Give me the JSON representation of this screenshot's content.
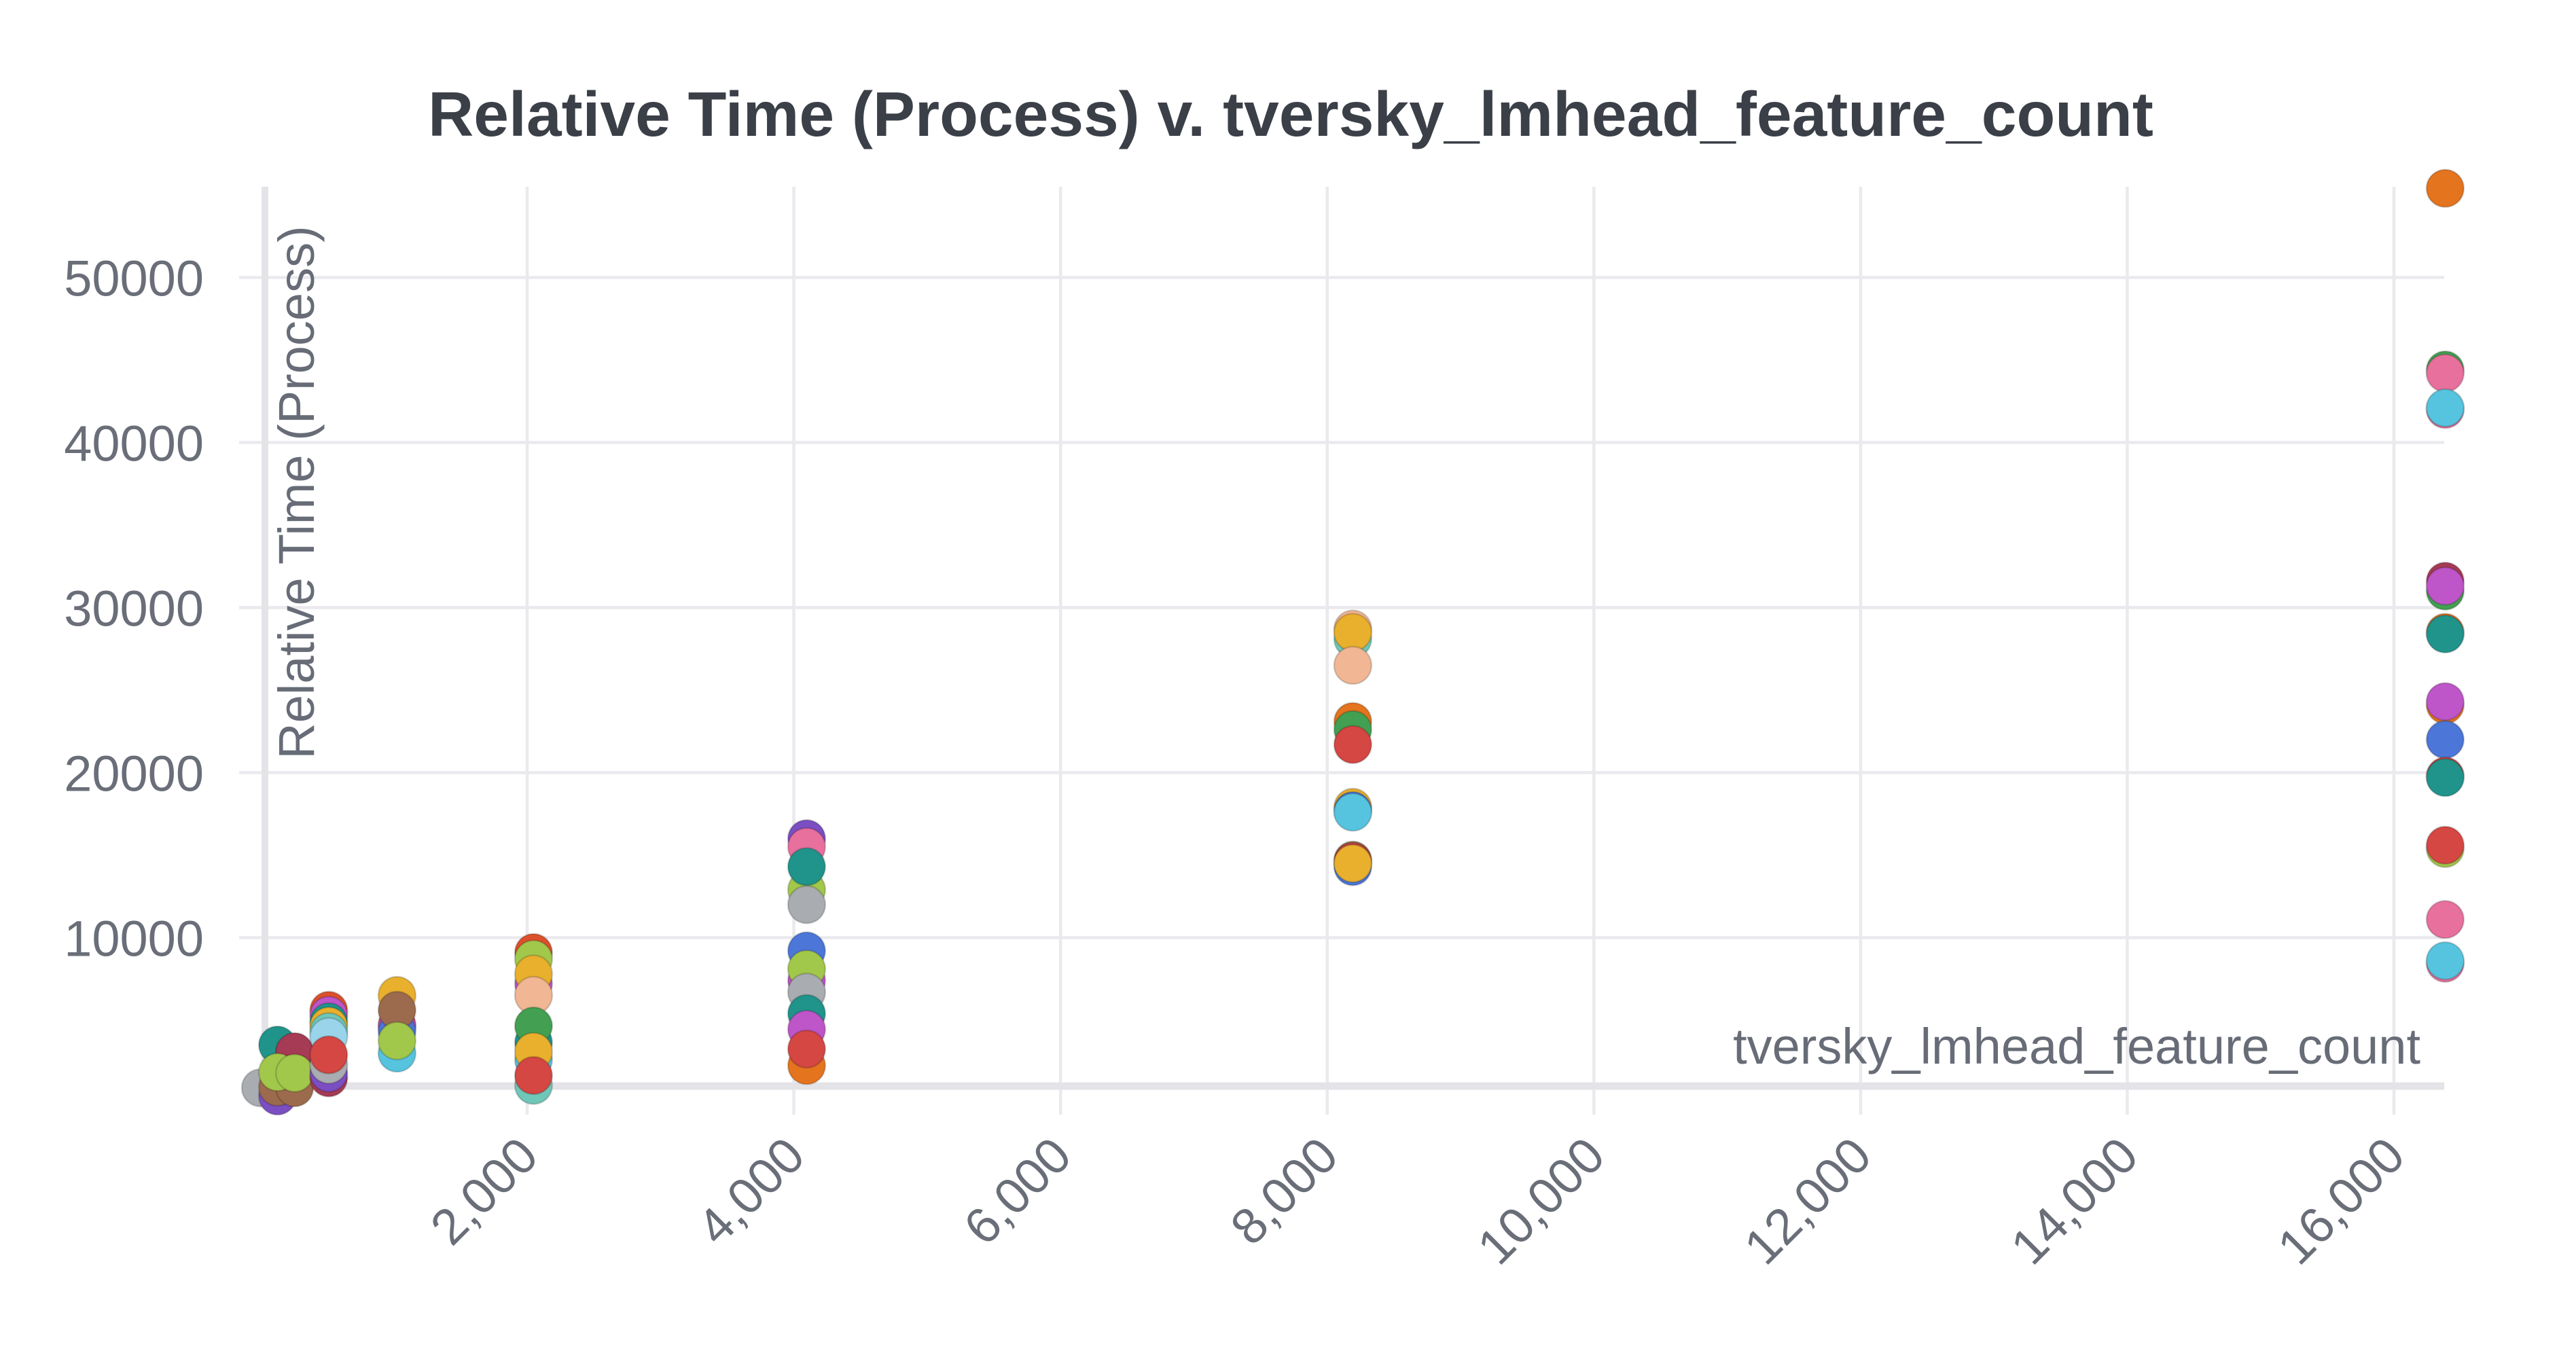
{
  "chart_data": {
    "type": "scatter",
    "title": "Relative Time (Process) v. tversky_lmhead_feature_count",
    "xlabel": "tversky_lmhead_feature_count",
    "ylabel": "Relative Time (Process)",
    "xlim": [
      0,
      16384
    ],
    "ylim": [
      400,
      55700
    ],
    "grid": true,
    "legend_position": "none",
    "x_ticks": [
      {
        "value": 2000,
        "label": "2,000"
      },
      {
        "value": 4000,
        "label": "4,000"
      },
      {
        "value": 6000,
        "label": "6,000"
      },
      {
        "value": 8000,
        "label": "8,000"
      },
      {
        "value": 10000,
        "label": "10,000"
      },
      {
        "value": 12000,
        "label": "12,000"
      },
      {
        "value": 14000,
        "label": "14,000"
      },
      {
        "value": 16000,
        "label": "16,000"
      }
    ],
    "y_ticks": [
      {
        "value": 10000,
        "label": "10000"
      },
      {
        "value": 20000,
        "label": "20000"
      },
      {
        "value": 30000,
        "label": "30000"
      },
      {
        "value": 40000,
        "label": "40000"
      },
      {
        "value": 50000,
        "label": "50000"
      }
    ],
    "palette": {
      "gray": "#a9acb0",
      "yellowgreen": "#a2c84b",
      "brown": "#9c6b4e",
      "purple": "#7b4ec2",
      "teal": "#20948b",
      "crimson": "#a63b55",
      "peach": "#f1b794",
      "orangered": "#dc512c",
      "magenta": "#be55c8",
      "yellow": "#e9b02e",
      "turquoise": "#6fc7b8",
      "palecyan": "#9ad4ea",
      "red": "#d54743",
      "blue": "#4c76d8",
      "cyan": "#57c4df",
      "green": "#43a052",
      "orange": "#e5741e",
      "pink": "#e8709d"
    },
    "points": [
      {
        "x": 0,
        "y": 900,
        "c": "gray"
      },
      {
        "x": 128,
        "y": 3500,
        "c": "teal"
      },
      {
        "x": 256,
        "y": 3000,
        "c": "peach"
      },
      {
        "x": 256,
        "y": 3100,
        "c": "crimson"
      },
      {
        "x": 128,
        "y": 400,
        "c": "purple"
      },
      {
        "x": 128,
        "y": 950,
        "c": "brown"
      },
      {
        "x": 256,
        "y": 900,
        "c": "brown"
      },
      {
        "x": 128,
        "y": 1850,
        "c": "yellowgreen"
      },
      {
        "x": 256,
        "y": 1800,
        "c": "yellowgreen"
      },
      {
        "x": 512,
        "y": 5600,
        "c": "orangered"
      },
      {
        "x": 512,
        "y": 5300,
        "c": "magenta"
      },
      {
        "x": 512,
        "y": 4900,
        "c": "teal"
      },
      {
        "x": 512,
        "y": 4650,
        "c": "yellow"
      },
      {
        "x": 512,
        "y": 4300,
        "c": "turquoise"
      },
      {
        "x": 512,
        "y": 4000,
        "c": "palecyan"
      },
      {
        "x": 512,
        "y": 1500,
        "c": "crimson"
      },
      {
        "x": 512,
        "y": 1800,
        "c": "purple"
      },
      {
        "x": 512,
        "y": 2300,
        "c": "gray"
      },
      {
        "x": 512,
        "y": 2900,
        "c": "red"
      },
      {
        "x": 1024,
        "y": 6500,
        "c": "yellow"
      },
      {
        "x": 1024,
        "y": 4700,
        "c": "red"
      },
      {
        "x": 1024,
        "y": 4600,
        "c": "magenta"
      },
      {
        "x": 1024,
        "y": 4300,
        "c": "blue"
      },
      {
        "x": 1024,
        "y": 5600,
        "c": "brown"
      },
      {
        "x": 1024,
        "y": 3000,
        "c": "cyan"
      },
      {
        "x": 1024,
        "y": 3750,
        "c": "yellowgreen"
      },
      {
        "x": 2048,
        "y": 9100,
        "c": "orangered"
      },
      {
        "x": 2048,
        "y": 8700,
        "c": "yellowgreen"
      },
      {
        "x": 2048,
        "y": 7200,
        "c": "magenta"
      },
      {
        "x": 2048,
        "y": 7800,
        "c": "yellow"
      },
      {
        "x": 2048,
        "y": 6500,
        "c": "peach"
      },
      {
        "x": 2048,
        "y": 3650,
        "c": "teal"
      },
      {
        "x": 2048,
        "y": 4650,
        "c": "green"
      },
      {
        "x": 2048,
        "y": 2600,
        "c": "cyan"
      },
      {
        "x": 2048,
        "y": 3100,
        "c": "yellow"
      },
      {
        "x": 2048,
        "y": 1050,
        "c": "turquoise"
      },
      {
        "x": 2048,
        "y": 1650,
        "c": "red"
      },
      {
        "x": 4096,
        "y": 16000,
        "c": "purple"
      },
      {
        "x": 4096,
        "y": 15500,
        "c": "pink"
      },
      {
        "x": 4096,
        "y": 12900,
        "c": "yellowgreen"
      },
      {
        "x": 4096,
        "y": 14300,
        "c": "teal"
      },
      {
        "x": 4096,
        "y": 12000,
        "c": "gray"
      },
      {
        "x": 4096,
        "y": 7400,
        "c": "magenta"
      },
      {
        "x": 4096,
        "y": 9200,
        "c": "blue"
      },
      {
        "x": 4096,
        "y": 8100,
        "c": "yellowgreen"
      },
      {
        "x": 4096,
        "y": 6700,
        "c": "gray"
      },
      {
        "x": 4096,
        "y": 5400,
        "c": "teal"
      },
      {
        "x": 4096,
        "y": 4450,
        "c": "magenta"
      },
      {
        "x": 4096,
        "y": 2250,
        "c": "orange"
      },
      {
        "x": 4096,
        "y": 3250,
        "c": "red"
      },
      {
        "x": 8192,
        "y": 28700,
        "c": "peach"
      },
      {
        "x": 8192,
        "y": 28100,
        "c": "turquoise"
      },
      {
        "x": 8192,
        "y": 28500,
        "c": "yellow"
      },
      {
        "x": 8192,
        "y": 26500,
        "c": "peach"
      },
      {
        "x": 8192,
        "y": 23100,
        "c": "orange"
      },
      {
        "x": 8192,
        "y": 22600,
        "c": "green"
      },
      {
        "x": 8192,
        "y": 21700,
        "c": "red"
      },
      {
        "x": 8192,
        "y": 17900,
        "c": "yellow"
      },
      {
        "x": 8192,
        "y": 17700,
        "c": "blue"
      },
      {
        "x": 8192,
        "y": 17600,
        "c": "cyan"
      },
      {
        "x": 8192,
        "y": 14700,
        "c": "brown"
      },
      {
        "x": 8192,
        "y": 14600,
        "c": "red"
      },
      {
        "x": 8192,
        "y": 14300,
        "c": "blue"
      },
      {
        "x": 8192,
        "y": 14500,
        "c": "yellow"
      },
      {
        "x": 16384,
        "y": 55400,
        "c": "orange"
      },
      {
        "x": 16384,
        "y": 44400,
        "c": "green"
      },
      {
        "x": 16384,
        "y": 44200,
        "c": "pink"
      },
      {
        "x": 16384,
        "y": 42000,
        "c": "pink"
      },
      {
        "x": 16384,
        "y": 42100,
        "c": "cyan"
      },
      {
        "x": 16384,
        "y": 31600,
        "c": "crimson"
      },
      {
        "x": 16384,
        "y": 31000,
        "c": "green"
      },
      {
        "x": 16384,
        "y": 31300,
        "c": "magenta"
      },
      {
        "x": 16384,
        "y": 28500,
        "c": "orange"
      },
      {
        "x": 16384,
        "y": 28400,
        "c": "teal"
      },
      {
        "x": 16384,
        "y": 24100,
        "c": "orange"
      },
      {
        "x": 16384,
        "y": 24300,
        "c": "magenta"
      },
      {
        "x": 16384,
        "y": 22000,
        "c": "blue"
      },
      {
        "x": 16384,
        "y": 19800,
        "c": "red"
      },
      {
        "x": 16384,
        "y": 19700,
        "c": "teal"
      },
      {
        "x": 16384,
        "y": 15400,
        "c": "yellowgreen"
      },
      {
        "x": 16384,
        "y": 15600,
        "c": "red"
      },
      {
        "x": 16384,
        "y": 11100,
        "c": "pink"
      },
      {
        "x": 16384,
        "y": 8450,
        "c": "pink"
      },
      {
        "x": 16384,
        "y": 8600,
        "c": "cyan"
      }
    ]
  }
}
